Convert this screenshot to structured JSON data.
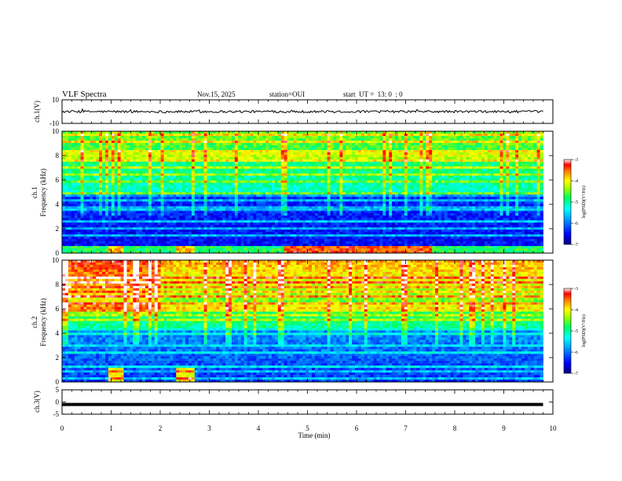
{
  "header": {
    "title": "VLF Spectra",
    "date": "Nov.15, 2025",
    "station": "station=OUI",
    "start": "start  UT =  13: 0  : 0"
  },
  "colors": {
    "spectrogram_scale": [
      "#000080",
      "#0000ff",
      "#00a0ff",
      "#00ffff",
      "#00ff80",
      "#80ff00",
      "#ffff00",
      "#ff8000",
      "#ff0000",
      "#ffffff"
    ],
    "trace": "#000000"
  },
  "chart_data": [
    {
      "type": "line",
      "panel": "ch1-waveform",
      "ylabel": "ch.1(V)",
      "ylim": [
        -10,
        10
      ],
      "ytick_labels": [
        "10",
        "-10"
      ],
      "xlim": [
        0,
        10
      ],
      "approx_baseline": 0,
      "approx_amplitude": 1
    },
    {
      "type": "heatmap",
      "panel": "ch1-spectrogram",
      "ylabel": "ch.1\nFrequency (kHz)",
      "ylim": [
        0,
        10
      ],
      "ytick_labels": [
        "0",
        "2",
        "4",
        "6",
        "8",
        "10"
      ],
      "xlim": [
        0,
        10
      ],
      "data_end_min": 9.8,
      "colorbar": {
        "label": "log(PSD)(V²/Hz)",
        "range": [
          -7,
          -3
        ],
        "tick_labels": [
          "-3",
          "-4",
          "-5",
          "-6",
          "-7"
        ]
      }
    },
    {
      "type": "heatmap",
      "panel": "ch2-spectrogram",
      "ylabel": "ch.2\nFrequency (kHz)",
      "ylim": [
        0,
        10
      ],
      "ytick_labels": [
        "0",
        "2",
        "4",
        "6",
        "8",
        "10"
      ],
      "xlim": [
        0,
        10
      ],
      "data_end_min": 9.8,
      "colorbar": {
        "label": "log(PSD)(V²/Hz)",
        "range": [
          -7,
          -3
        ],
        "tick_labels": [
          "-3",
          "-4",
          "-5",
          "-6",
          "-7"
        ]
      }
    },
    {
      "type": "line",
      "panel": "ch3-waveform",
      "ylabel": "ch.3(V)",
      "ylim": [
        -5,
        5
      ],
      "ytick_labels": [
        "5",
        "0",
        "-5"
      ],
      "xlim": [
        0,
        10
      ],
      "approx_value": -1
    }
  ],
  "xaxis": {
    "label": "Time (min)",
    "tick_labels": [
      "0",
      "1",
      "2",
      "3",
      "4",
      "5",
      "6",
      "7",
      "8",
      "9",
      "10"
    ]
  }
}
